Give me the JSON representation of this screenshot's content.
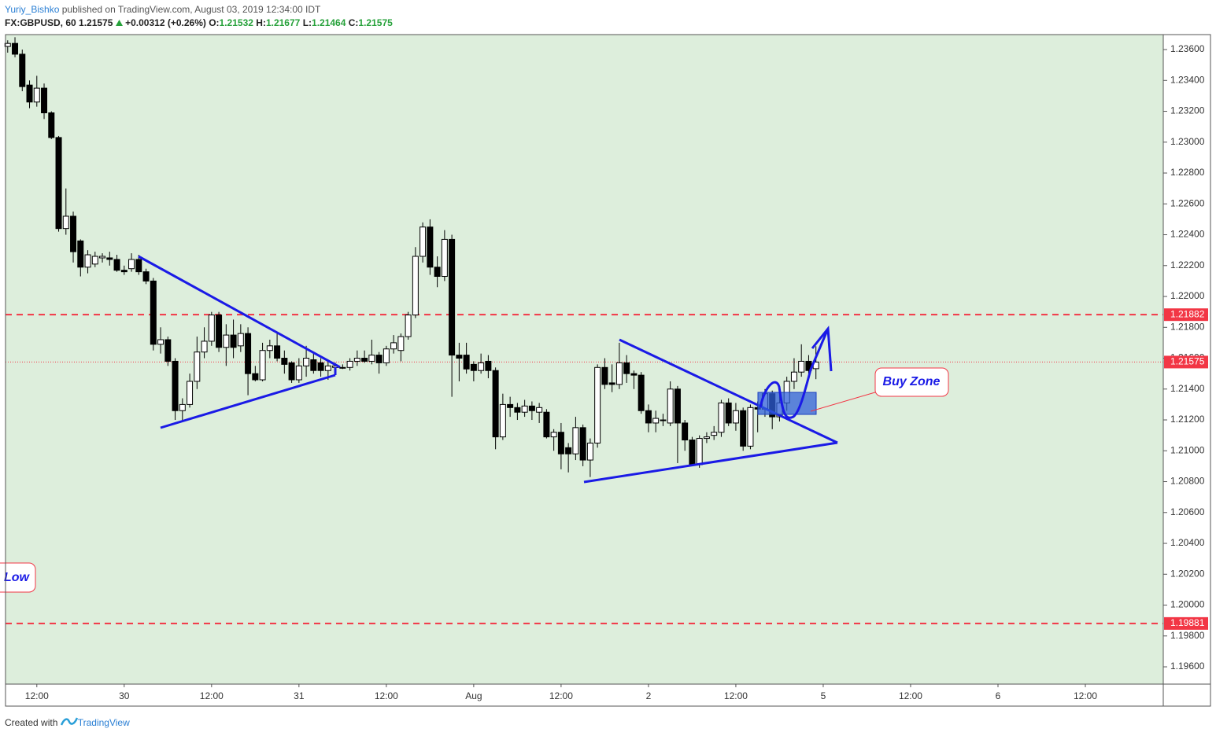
{
  "header": {
    "author": "Yuriy_Bishko",
    "published": "published on TradingView.com, August 03, 2019 12:34:00 IDT",
    "symbol": "FX:GBPUSD, 60",
    "last": "1.21575",
    "change": "+0.00312 (+0.26%)",
    "ohlc": [
      {
        "label": "O:",
        "value": "1.21532"
      },
      {
        "label": "H:",
        "value": "1.21677"
      },
      {
        "label": "L:",
        "value": "1.21464"
      },
      {
        "label": "C:",
        "value": "1.21575"
      }
    ]
  },
  "footer": {
    "text": "Created with",
    "brand": "TradingView"
  },
  "chart_data": {
    "type": "candlestick",
    "x": [
      -16,
      -15,
      -14,
      -13,
      -12,
      -11,
      -10,
      -9,
      -8,
      -7,
      -6,
      -5,
      -4,
      -3,
      -2,
      -1,
      0,
      1,
      2,
      3,
      4,
      5,
      6,
      7,
      8,
      9,
      10,
      11,
      12,
      13,
      14,
      15,
      16,
      17,
      18,
      19,
      20,
      21,
      22,
      23,
      24,
      25,
      26,
      27,
      28,
      29,
      30,
      31,
      32,
      33,
      34,
      35,
      36,
      37,
      38,
      39,
      40,
      41,
      42,
      43,
      44,
      45,
      46,
      47,
      48,
      49,
      50,
      51,
      52,
      53,
      54,
      55,
      56,
      57,
      58,
      59,
      60,
      61,
      62,
      63,
      64,
      65,
      66,
      67,
      68,
      69,
      70,
      71,
      72,
      73,
      74,
      75,
      76,
      77,
      78,
      79,
      80,
      81,
      82,
      83,
      84,
      85,
      86,
      87,
      88,
      89,
      90,
      91,
      92,
      93,
      94,
      95
    ],
    "open": [
      1.2362,
      1.2364,
      1.2357,
      1.2337,
      1.2326,
      1.2335,
      1.2319,
      1.2303,
      1.2244,
      1.2252,
      1.2236,
      1.2219,
      1.2221,
      1.2225,
      1.2225,
      1.2224,
      1.2217,
      1.2218,
      1.2224,
      1.2216,
      1.221,
      1.2169,
      1.2172,
      1.2158,
      1.2126,
      1.213,
      1.2145,
      1.2164,
      1.2171,
      1.2188,
      1.2167,
      1.2175,
      1.2168,
      1.2176,
      1.215,
      1.2146,
      1.2165,
      1.2168,
      1.216,
      1.2157,
      1.2146,
      1.2155,
      1.2159,
      1.2157,
      1.2152,
      1.2154,
      1.2154,
      1.2154,
      1.2158,
      1.216,
      1.2158,
      1.2162,
      1.2157,
      1.2166,
      1.2165,
      1.2174,
      1.2188,
      1.2226,
      1.2245,
      1.2219,
      1.2213,
      1.2237,
      1.2162,
      1.2162,
      1.2156,
      1.2152,
      1.2158,
      1.2152,
      1.2109,
      1.213,
      1.2128,
      1.2125,
      1.2129,
      1.2125,
      1.2125,
      1.2109,
      1.2112,
      1.2102,
      1.2098,
      1.2115,
      1.2094,
      1.2105,
      1.2154,
      1.2144,
      1.2143,
      1.2157,
      1.215,
      1.2149,
      1.2126,
      1.2118,
      1.212,
      1.2118,
      1.214,
      1.2118,
      1.2107,
      1.2091,
      1.2108,
      1.211,
      1.2112,
      1.2131,
      1.2118,
      1.2126,
      1.2103,
      1.2128,
      1.2127,
      1.2137,
      1.2122,
      1.2131,
      1.2145,
      1.2151,
      1.2158,
      1.21532
    ],
    "high": [
      1.2366,
      1.2368,
      1.236,
      1.234,
      1.2343,
      1.2338,
      1.232,
      1.2304,
      1.227,
      1.2255,
      1.2237,
      1.223,
      1.2229,
      1.2228,
      1.2229,
      1.2227,
      1.222,
      1.2228,
      1.2227,
      1.2218,
      1.2212,
      1.218,
      1.2174,
      1.216,
      1.2134,
      1.215,
      1.2174,
      1.218,
      1.219,
      1.219,
      1.2182,
      1.2185,
      1.2182,
      1.218,
      1.2155,
      1.217,
      1.2172,
      1.2176,
      1.2165,
      1.2158,
      1.216,
      1.2168,
      1.2164,
      1.216,
      1.2158,
      1.2157,
      1.2156,
      1.216,
      1.2165,
      1.2165,
      1.2172,
      1.2164,
      1.2168,
      1.2175,
      1.2176,
      1.219,
      1.2232,
      1.2248,
      1.225,
      1.2226,
      1.2243,
      1.224,
      1.217,
      1.217,
      1.2158,
      1.2163,
      1.2162,
      1.2154,
      1.2137,
      1.2135,
      1.2131,
      1.2133,
      1.2132,
      1.2131,
      1.2127,
      1.2114,
      1.2118,
      1.2105,
      1.2122,
      1.2117,
      1.2108,
      1.2156,
      1.216,
      1.2156,
      1.217,
      1.2162,
      1.2152,
      1.2151,
      1.213,
      1.2126,
      1.2124,
      1.2145,
      1.2142,
      1.212,
      1.2109,
      1.211,
      1.2112,
      1.2116,
      1.2133,
      1.2134,
      1.2131,
      1.2128,
      1.213,
      1.2132,
      1.214,
      1.2139,
      1.2137,
      1.2148,
      1.216,
      1.2169,
      1.2162,
      1.21677
    ],
    "low": [
      1.2358,
      1.2355,
      1.2333,
      1.2322,
      1.2323,
      1.2315,
      1.2302,
      1.2242,
      1.224,
      1.2222,
      1.2213,
      1.2215,
      1.2219,
      1.2222,
      1.222,
      1.2216,
      1.2214,
      1.2216,
      1.2214,
      1.2208,
      1.2165,
      1.2163,
      1.2155,
      1.212,
      1.2119,
      1.2128,
      1.214,
      1.216,
      1.2168,
      1.2164,
      1.2155,
      1.216,
      1.2164,
      1.2136,
      1.2145,
      1.2145,
      1.216,
      1.2158,
      1.215,
      1.2144,
      1.2144,
      1.2148,
      1.215,
      1.2148,
      1.2146,
      1.2152,
      1.2153,
      1.2152,
      1.2155,
      1.2157,
      1.2156,
      1.215,
      1.2155,
      1.2163,
      1.2158,
      1.2172,
      1.2186,
      1.2222,
      1.2214,
      1.2206,
      1.221,
      1.2135,
      1.2145,
      1.215,
      1.2145,
      1.215,
      1.2147,
      1.2101,
      1.2107,
      1.2122,
      1.212,
      1.2122,
      1.212,
      1.2118,
      1.2108,
      1.21,
      1.2088,
      1.2086,
      1.2094,
      1.209,
      1.2083,
      1.2102,
      1.214,
      1.2138,
      1.214,
      1.2144,
      1.214,
      1.2124,
      1.2112,
      1.2112,
      1.2116,
      1.2116,
      1.2092,
      1.21,
      1.209,
      1.2089,
      1.2105,
      1.2107,
      1.2109,
      1.2116,
      1.2113,
      1.21,
      1.2101,
      1.2112,
      1.2122,
      1.2114,
      1.2119,
      1.2126,
      1.214,
      1.2148,
      1.215,
      1.21464
    ],
    "close": [
      1.2364,
      1.2357,
      1.2336,
      1.2326,
      1.2335,
      1.2319,
      1.2303,
      1.2244,
      1.2252,
      1.2229,
      1.2219,
      1.2227,
      1.2226,
      1.2226,
      1.2224,
      1.2217,
      1.2216,
      1.2224,
      1.2216,
      1.221,
      1.2169,
      1.2172,
      1.2158,
      1.2126,
      1.213,
      1.2145,
      1.2164,
      1.2171,
      1.2188,
      1.2167,
      1.2175,
      1.2167,
      1.2176,
      1.215,
      1.2146,
      1.2165,
      1.2168,
      1.216,
      1.2156,
      1.2146,
      1.2155,
      1.216,
      1.2152,
      1.2152,
      1.2155,
      1.2155,
      1.2154,
      1.2158,
      1.216,
      1.2158,
      1.2162,
      1.2157,
      1.2166,
      1.217,
      1.2174,
      1.2188,
      1.2226,
      1.2245,
      1.2219,
      1.2213,
      1.2237,
      1.2162,
      1.216,
      1.2153,
      1.2152,
      1.2157,
      1.2152,
      1.2109,
      1.213,
      1.2128,
      1.2125,
      1.2129,
      1.2126,
      1.2128,
      1.2109,
      1.2112,
      1.2098,
      1.2098,
      1.2115,
      1.2094,
      1.2105,
      1.2154,
      1.2143,
      1.2143,
      1.2157,
      1.215,
      1.2149,
      1.2126,
      1.2118,
      1.2121,
      1.212,
      1.214,
      1.2118,
      1.2107,
      1.2091,
      1.2108,
      1.2109,
      1.2112,
      1.2131,
      1.2118,
      1.2126,
      1.2103,
      1.2128,
      1.2127,
      1.2137,
      1.2122,
      1.2131,
      1.2145,
      1.2151,
      1.2158,
      1.2152,
      1.21575
    ],
    "up_color": "#ffffff",
    "down_color": "#000000",
    "background": "#ddeedc",
    "grid": false,
    "xlim": [
      -16.3,
      142.7
    ],
    "xticks": [
      {
        "value": -12,
        "label": "12:00"
      },
      {
        "value": 0,
        "label": "30"
      },
      {
        "value": 12,
        "label": "12:00"
      },
      {
        "value": 24,
        "label": "31"
      },
      {
        "value": 36,
        "label": "12:00"
      },
      {
        "value": 48,
        "label": "Aug"
      },
      {
        "value": 60,
        "label": "12:00"
      },
      {
        "value": 72,
        "label": "2"
      },
      {
        "value": 84,
        "label": "12:00"
      },
      {
        "value": 96,
        "label": "5"
      },
      {
        "value": 108,
        "label": "12:00"
      },
      {
        "value": 120,
        "label": "6"
      },
      {
        "value": 132,
        "label": "12:00"
      }
    ],
    "ylim": [
      1.19488,
      1.23697
    ],
    "yticks": [
      {
        "value": 1.236,
        "label": "1.23600"
      },
      {
        "value": 1.234,
        "label": "1.23400"
      },
      {
        "value": 1.232,
        "label": "1.23200"
      },
      {
        "value": 1.23,
        "label": "1.23000"
      },
      {
        "value": 1.228,
        "label": "1.22800"
      },
      {
        "value": 1.226,
        "label": "1.22600"
      },
      {
        "value": 1.224,
        "label": "1.22400"
      },
      {
        "value": 1.222,
        "label": "1.22200"
      },
      {
        "value": 1.22,
        "label": "1.22000"
      },
      {
        "value": 1.218,
        "label": "1.21800"
      },
      {
        "value": 1.216,
        "label": "1.21600"
      },
      {
        "value": 1.214,
        "label": "1.21400"
      },
      {
        "value": 1.212,
        "label": "1.21200"
      },
      {
        "value": 1.21,
        "label": "1.21000"
      },
      {
        "value": 1.208,
        "label": "1.20800"
      },
      {
        "value": 1.206,
        "label": "1.20600"
      },
      {
        "value": 1.204,
        "label": "1.20400"
      },
      {
        "value": 1.202,
        "label": "1.20200"
      },
      {
        "value": 1.2,
        "label": "1.20000"
      },
      {
        "value": 1.198,
        "label": "1.19800"
      },
      {
        "value": 1.196,
        "label": "1.19600"
      }
    ],
    "hlines": [
      {
        "value": 1.21882,
        "label": "1.21882",
        "color": "#f23645"
      },
      {
        "value": 1.19881,
        "label": "1.19881",
        "color": "#f23645"
      }
    ],
    "last_price": {
      "value": 1.21575,
      "label": "1.21575",
      "color": "#f23645"
    },
    "annotations": [
      "Buy Zone",
      "Low"
    ]
  }
}
